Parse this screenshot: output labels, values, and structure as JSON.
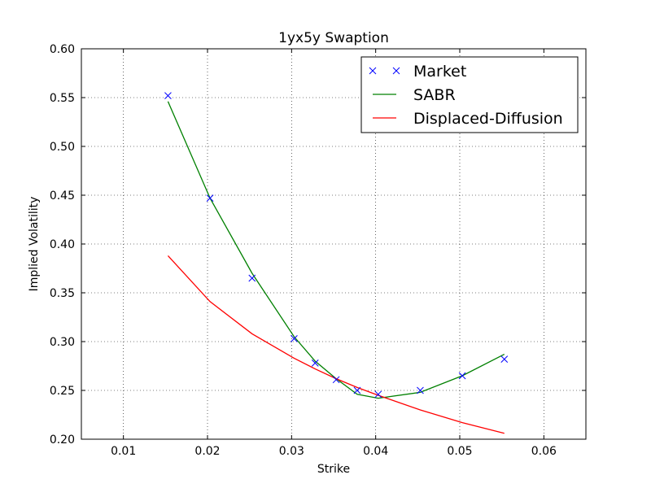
{
  "chart_data": {
    "type": "line",
    "title": "1yx5y Swaption",
    "xlabel": "Strike",
    "ylabel": "Implied Volatility",
    "xlim": [
      0.005,
      0.065
    ],
    "ylim": [
      0.2,
      0.6
    ],
    "xticks": [
      0.01,
      0.02,
      0.03,
      0.04,
      0.05,
      0.06
    ],
    "xtick_labels": [
      "0.01",
      "0.02",
      "0.03",
      "0.04",
      "0.05",
      "0.06"
    ],
    "yticks": [
      0.2,
      0.25,
      0.3,
      0.35,
      0.4,
      0.45,
      0.5,
      0.55,
      0.6
    ],
    "ytick_labels": [
      "0.20",
      "0.25",
      "0.30",
      "0.35",
      "0.40",
      "0.45",
      "0.50",
      "0.55",
      "0.60"
    ],
    "grid": true,
    "legend_position": "top-right",
    "series": [
      {
        "name": "Market",
        "style": "marker",
        "marker": "x",
        "color": "#0000ff",
        "x": [
          0.0153,
          0.0203,
          0.0253,
          0.0303,
          0.0328,
          0.0353,
          0.0378,
          0.0403,
          0.0453,
          0.0503,
          0.0553
        ],
        "y": [
          0.552,
          0.447,
          0.365,
          0.303,
          0.278,
          0.261,
          0.25,
          0.246,
          0.25,
          0.265,
          0.282
        ]
      },
      {
        "name": "SABR",
        "style": "line",
        "color": "#008000",
        "x": [
          0.0153,
          0.0203,
          0.0253,
          0.0303,
          0.0328,
          0.0353,
          0.0378,
          0.0403,
          0.0453,
          0.0503,
          0.0553
        ],
        "y": [
          0.546,
          0.447,
          0.37,
          0.305,
          0.28,
          0.262,
          0.246,
          0.242,
          0.248,
          0.265,
          0.287
        ]
      },
      {
        "name": "Displaced-Diffusion",
        "style": "line",
        "color": "#ff0000",
        "x": [
          0.0153,
          0.0203,
          0.0253,
          0.0303,
          0.0328,
          0.0353,
          0.0378,
          0.0403,
          0.0453,
          0.0503,
          0.0553
        ],
        "y": [
          0.388,
          0.341,
          0.308,
          0.283,
          0.272,
          0.262,
          0.253,
          0.245,
          0.23,
          0.217,
          0.206
        ]
      }
    ]
  }
}
